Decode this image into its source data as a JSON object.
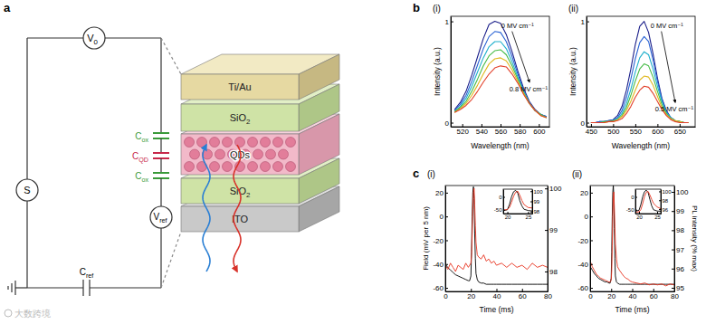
{
  "panel_labels": [
    "a",
    "b",
    "c"
  ],
  "watermark": "大数跨境",
  "diagram": {
    "source": "S",
    "voltage": {
      "text": "V",
      "sub": "0"
    },
    "reference_voltage": {
      "text": "V",
      "sub": "ref"
    },
    "reference_capacitor": {
      "text": "C",
      "sub": "ref"
    },
    "capacitors": [
      {
        "text": "C",
        "sub": "ox",
        "color": "#3a9a3a"
      },
      {
        "text": "C",
        "sub": "QD",
        "color": "#c8284a"
      },
      {
        "text": "C",
        "sub": "ox",
        "color": "#3a9a3a"
      }
    ],
    "layers": [
      {
        "text": "Ti/Au"
      },
      {
        "text": "SiO",
        "sub": "2"
      },
      {
        "text": "QDs"
      },
      {
        "text": "SiO",
        "sub": "2"
      },
      {
        "text": "ITO"
      }
    ]
  },
  "chart_data": [
    {
      "type": "line",
      "title": "(i)",
      "xlabel": "Wavelength (nm)",
      "ylabel": "Intensity (a.u.)",
      "x": [
        512,
        518,
        524,
        530,
        536,
        542,
        548,
        554,
        560,
        566,
        572,
        578,
        584,
        590,
        596,
        602,
        608
      ],
      "xlim": [
        508,
        611
      ],
      "xticks": [
        520,
        540,
        560,
        580,
        600
      ],
      "ylim": [
        -0.04,
        1.05
      ],
      "yticks": [
        0,
        1
      ],
      "annotations": [
        "0 MV cm⁻¹",
        "0.8 MV cm⁻¹"
      ],
      "series": [
        {
          "color": "#1b1f8a",
          "values": [
            0.13,
            0.2,
            0.31,
            0.47,
            0.65,
            0.83,
            0.97,
            1.0,
            0.98,
            0.87,
            0.7,
            0.51,
            0.34,
            0.21,
            0.13,
            0.08,
            0.06
          ]
        },
        {
          "color": "#2a63d4",
          "values": [
            0.12,
            0.18,
            0.27,
            0.41,
            0.57,
            0.73,
            0.85,
            0.9,
            0.89,
            0.8,
            0.65,
            0.48,
            0.32,
            0.2,
            0.12,
            0.08,
            0.06
          ]
        },
        {
          "color": "#1fb0cc",
          "values": [
            0.11,
            0.16,
            0.24,
            0.36,
            0.5,
            0.64,
            0.75,
            0.8,
            0.8,
            0.73,
            0.6,
            0.45,
            0.31,
            0.19,
            0.12,
            0.08,
            0.05
          ]
        },
        {
          "color": "#46bb46",
          "values": [
            0.11,
            0.15,
            0.21,
            0.31,
            0.43,
            0.56,
            0.66,
            0.71,
            0.72,
            0.67,
            0.56,
            0.43,
            0.3,
            0.19,
            0.12,
            0.08,
            0.05
          ]
        },
        {
          "color": "#e0b81e",
          "values": [
            0.1,
            0.14,
            0.19,
            0.27,
            0.37,
            0.48,
            0.58,
            0.63,
            0.64,
            0.61,
            0.52,
            0.41,
            0.29,
            0.19,
            0.12,
            0.07,
            0.05
          ]
        },
        {
          "color": "#e2402a",
          "values": [
            0.1,
            0.13,
            0.17,
            0.23,
            0.31,
            0.4,
            0.48,
            0.54,
            0.56,
            0.55,
            0.48,
            0.39,
            0.28,
            0.19,
            0.12,
            0.07,
            0.05
          ]
        }
      ]
    },
    {
      "type": "line",
      "title": "(ii)",
      "xlabel": "Wavelength (nm)",
      "ylabel": "Intensity (a.u.)",
      "x": [
        450,
        460,
        470,
        480,
        490,
        500,
        510,
        520,
        530,
        540,
        550,
        560,
        570,
        580,
        590,
        600,
        610,
        620,
        630,
        640,
        650,
        660,
        670
      ],
      "xlim": [
        440,
        685
      ],
      "xticks": [
        450,
        500,
        550,
        600,
        650
      ],
      "ylim": [
        -0.04,
        1.05
      ],
      "yticks": [
        0,
        1
      ],
      "annotations": [
        "0 MV cm⁻¹",
        "0.5 MV cm⁻¹"
      ],
      "series": [
        {
          "color": "#1b1f8a",
          "values": [
            0,
            0,
            0.01,
            0.01,
            0.02,
            0.03,
            0.07,
            0.16,
            0.32,
            0.53,
            0.77,
            0.95,
            1.0,
            0.89,
            0.68,
            0.44,
            0.24,
            0.12,
            0.05,
            0.02,
            0.01,
            0,
            0
          ]
        },
        {
          "color": "#2a63d4",
          "values": [
            0,
            0,
            0.01,
            0.01,
            0.02,
            0.03,
            0.05,
            0.12,
            0.25,
            0.43,
            0.63,
            0.79,
            0.85,
            0.8,
            0.62,
            0.41,
            0.23,
            0.11,
            0.05,
            0.02,
            0.01,
            0,
            0
          ]
        },
        {
          "color": "#1fb0cc",
          "values": [
            0,
            0,
            0,
            0.01,
            0.01,
            0.02,
            0.04,
            0.09,
            0.19,
            0.33,
            0.5,
            0.64,
            0.7,
            0.67,
            0.53,
            0.36,
            0.21,
            0.1,
            0.05,
            0.02,
            0.01,
            0,
            0
          ]
        },
        {
          "color": "#46bb46",
          "values": [
            0,
            0,
            0,
            0.01,
            0.01,
            0.02,
            0.03,
            0.07,
            0.15,
            0.27,
            0.41,
            0.53,
            0.58,
            0.56,
            0.45,
            0.31,
            0.18,
            0.09,
            0.04,
            0.02,
            0.01,
            0,
            0
          ]
        },
        {
          "color": "#e0b81e",
          "values": [
            0,
            0,
            0,
            0,
            0.01,
            0.01,
            0.03,
            0.06,
            0.12,
            0.21,
            0.32,
            0.42,
            0.46,
            0.45,
            0.37,
            0.26,
            0.15,
            0.08,
            0.04,
            0.02,
            0.01,
            0,
            0
          ]
        },
        {
          "color": "#e2402a",
          "values": [
            0,
            0,
            0,
            0,
            0.01,
            0.01,
            0.02,
            0.04,
            0.09,
            0.16,
            0.25,
            0.32,
            0.36,
            0.35,
            0.29,
            0.21,
            0.13,
            0.07,
            0.03,
            0.01,
            0,
            0,
            0
          ]
        }
      ]
    },
    {
      "type": "line",
      "title": "(i)",
      "xlabel": "Time (ms)",
      "ylabel": "Field (mV per 5 nm)",
      "x": [
        0,
        2,
        4,
        6,
        8,
        10,
        12,
        14,
        16,
        18,
        19,
        20,
        20.5,
        21,
        21.5,
        22,
        22.5,
        23,
        23.5,
        24,
        25,
        26,
        28,
        30,
        32,
        34,
        36,
        38,
        40,
        44,
        48,
        52,
        56,
        60,
        64,
        68,
        72,
        76,
        80
      ],
      "xlim": [
        0,
        80
      ],
      "xticks": [
        0,
        20,
        40,
        60,
        80
      ],
      "ylim": [
        -63,
        26
      ],
      "yticks": [
        -60,
        -40,
        -20,
        0,
        20
      ],
      "y2lim": [
        97.52,
        100.07
      ],
      "y2ticks": [
        98,
        99,
        100
      ],
      "series": [
        {
          "color": "#000000",
          "values": [
            -40,
            -43,
            -45,
            -47,
            -49,
            -50,
            -51,
            -52,
            -53,
            -54,
            -54,
            -50,
            -30,
            0,
            20,
            25,
            15,
            -15,
            -35,
            -48,
            -53,
            -55,
            -56,
            -56,
            -57,
            -57,
            -57,
            -57,
            -57,
            -57,
            -57,
            -57,
            -57,
            -57,
            -57,
            -57,
            -57,
            -57,
            -57
          ]
        },
        {
          "color": "#e8321e",
          "axis": "y2",
          "values": [
            98.15,
            98.05,
            98.2,
            98.1,
            98.0,
            98.15,
            98.1,
            98.05,
            98.2,
            98.1,
            98.15,
            98.2,
            98.4,
            98.9,
            99.5,
            99.9,
            100.0,
            99.6,
            99.1,
            98.7,
            98.4,
            98.35,
            98.3,
            98.4,
            98.25,
            98.3,
            98.2,
            98.25,
            98.15,
            98.2,
            98.1,
            98.2,
            98.1,
            98.15,
            98.05,
            98.2,
            98.1,
            98.15,
            98.1
          ]
        }
      ],
      "inset": {
        "xlim": [
          19,
          26
        ],
        "xticks": [
          20,
          25
        ],
        "ylim": [
          -65,
          30
        ],
        "yticks": [
          -50,
          0
        ],
        "y2lim": [
          97.8,
          100.2
        ],
        "y2ticks": [
          98,
          99,
          100
        ]
      }
    },
    {
      "type": "line",
      "title": "(ii)",
      "xlabel": "Time (ms)",
      "y2label": "PL intensity (% max)",
      "x": [
        0,
        2,
        4,
        6,
        8,
        10,
        12,
        14,
        16,
        18,
        19,
        20,
        20.5,
        21,
        21.5,
        22,
        22.5,
        23,
        23.5,
        24,
        25,
        26,
        28,
        30,
        32,
        34,
        36,
        38,
        40,
        44,
        48,
        52,
        56,
        60,
        64,
        68,
        72,
        76,
        80
      ],
      "xlim": [
        0,
        80
      ],
      "xticks": [
        0,
        20,
        40,
        60,
        80
      ],
      "ylim": [
        -63,
        26
      ],
      "yticks": [
        -60,
        -40,
        -20,
        0,
        20
      ],
      "y2lim": [
        94.81,
        100.33
      ],
      "y2ticks": [
        95,
        96,
        97,
        98,
        99,
        100
      ],
      "series": [
        {
          "color": "#000000",
          "values": [
            -42,
            -45,
            -48,
            -50,
            -52,
            -53,
            -54,
            -55,
            -55,
            -56,
            -56,
            -52,
            -30,
            0,
            20,
            26,
            18,
            -10,
            -35,
            -50,
            -55,
            -56,
            -57,
            -57,
            -57,
            -57,
            -57,
            -57,
            -57,
            -57,
            -57,
            -57,
            -57,
            -57,
            -57,
            -57,
            -57,
            -57,
            -57
          ]
        },
        {
          "color": "#e8321e",
          "axis": "y2",
          "values": [
            96.4,
            96.1,
            95.9,
            95.7,
            95.6,
            95.5,
            95.45,
            95.4,
            95.35,
            95.3,
            95.3,
            95.4,
            95.9,
            97.2,
            98.8,
            99.8,
            100.0,
            99.2,
            98.2,
            97.3,
            96.5,
            96.1,
            95.9,
            95.75,
            95.6,
            95.5,
            95.45,
            95.35,
            95.3,
            95.25,
            95.2,
            95.25,
            95.15,
            95.2,
            95.15,
            95.2,
            95.1,
            95.2,
            95.15
          ]
        }
      ],
      "inset": {
        "xlim": [
          19,
          26
        ],
        "xticks": [
          20,
          25
        ],
        "ylim": [
          -65,
          30
        ],
        "yticks": [
          -50,
          0
        ],
        "y2lim": [
          95,
          100.5
        ],
        "y2ticks": [
          96,
          98,
          100
        ]
      }
    }
  ]
}
